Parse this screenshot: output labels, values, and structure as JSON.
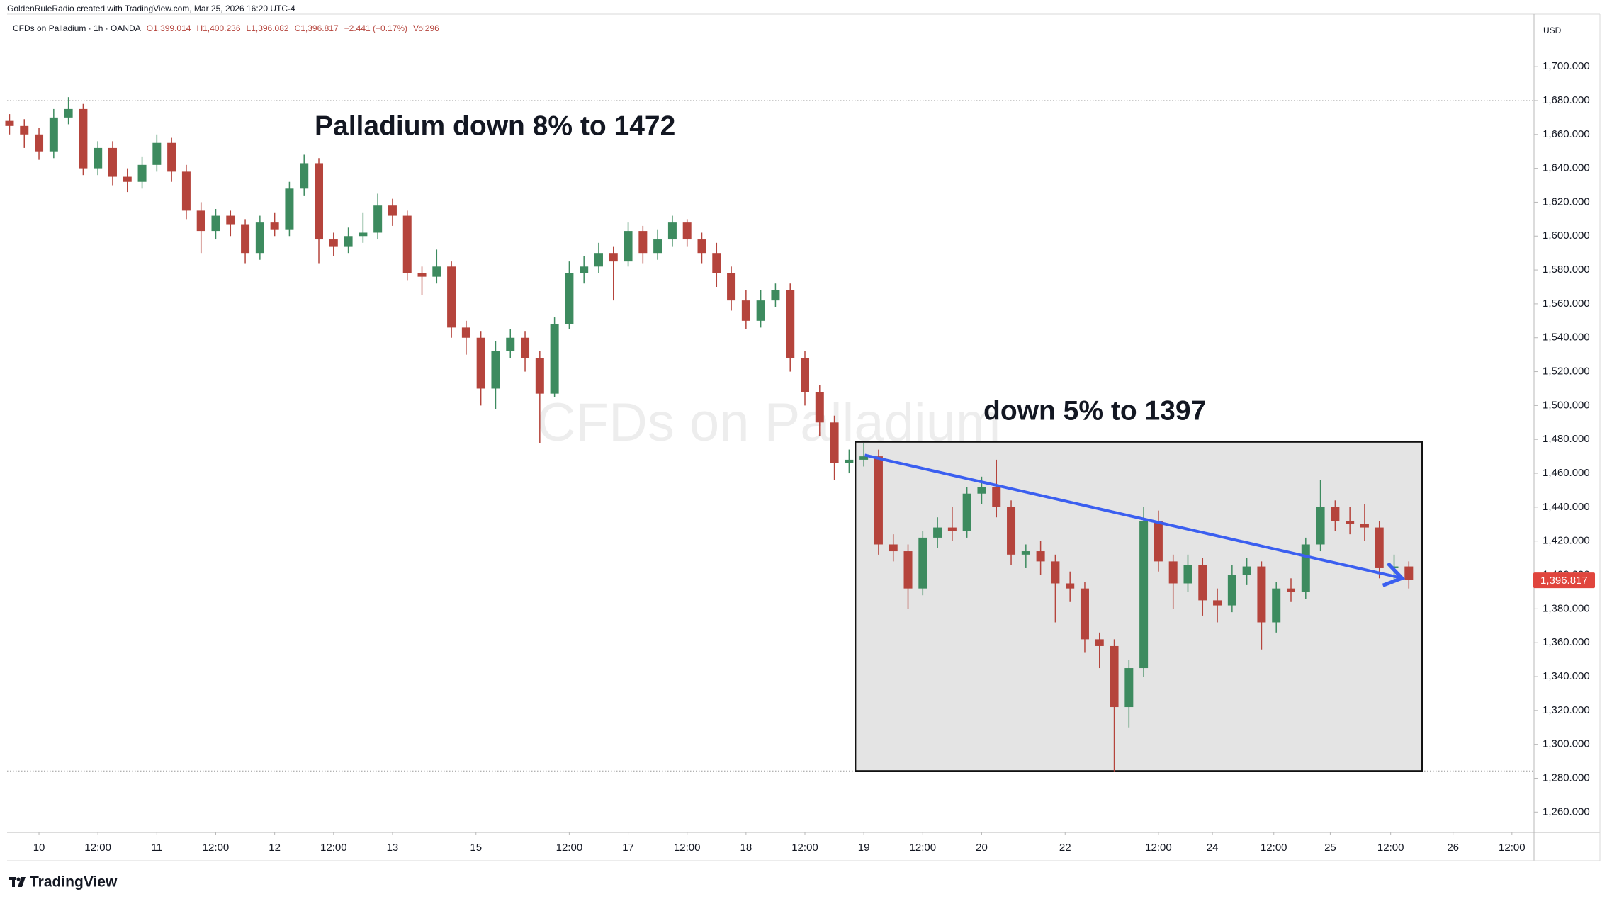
{
  "chart_data": {
    "type": "candlestick",
    "credit": "GoldenRuleRadio created with TradingView.com, Mar 25, 2026 16:20 UTC-4",
    "symbol": "CFDs on Palladium · 1h · OANDA",
    "ohlc": [
      "O1,399.014",
      "H1,400.236",
      "L1,396.082",
      "C1,396.817",
      "−2.441 (−0.17%)",
      "Vol296"
    ],
    "watermark": "CFDs on Palladium",
    "currency": "USD",
    "logo": "TradingView",
    "annotations": [
      "Palladium down 8% to 1472",
      "down 5% to 1397"
    ],
    "up_color": "#3d8b5f",
    "down_color": "#b5443c",
    "x": [
      -6,
      -3,
      0,
      3,
      6,
      9,
      12,
      15,
      18,
      21,
      24,
      27,
      30,
      33,
      36,
      39,
      42,
      45,
      48,
      51,
      54,
      57,
      60,
      63,
      66,
      69,
      72,
      75,
      78,
      81,
      84,
      87,
      90,
      93,
      96,
      99,
      102,
      105,
      108,
      111,
      114,
      117,
      120,
      123,
      126,
      129,
      132,
      135,
      138,
      141,
      144,
      147,
      150,
      153,
      156,
      159,
      162,
      165,
      168,
      171,
      174,
      177,
      180,
      183,
      186,
      189,
      192,
      195,
      198,
      201,
      204,
      207,
      210,
      213,
      216,
      219,
      222,
      225,
      228,
      231,
      234,
      237,
      240,
      243,
      246,
      249,
      252,
      255,
      258,
      261,
      264,
      267,
      270,
      273,
      276,
      279
    ],
    "open": [
      1668,
      1665,
      1660,
      1650,
      1670,
      1675,
      1640,
      1652,
      1635,
      1632,
      1642,
      1655,
      1638,
      1615,
      1603,
      1612,
      1607,
      1590,
      1608,
      1604,
      1628,
      1643,
      1598,
      1594,
      1600,
      1602,
      1618,
      1612,
      1578,
      1576,
      1582,
      1546,
      1540,
      1510,
      1532,
      1540,
      1528,
      1507,
      1548,
      1578,
      1582,
      1590,
      1585,
      1603,
      1590,
      1598,
      1608,
      1598,
      1590,
      1578,
      1562,
      1550,
      1562,
      1568,
      1528,
      1508,
      1490,
      1466,
      1468,
      1470,
      1418,
      1414,
      1392,
      1422,
      1428,
      1426,
      1448,
      1452,
      1440,
      1412,
      1414,
      1408,
      1395,
      1392,
      1362,
      1358,
      1322,
      1345,
      1432,
      1408,
      1395,
      1406,
      1385,
      1382,
      1400,
      1405,
      1372,
      1392,
      1390,
      1418,
      1440,
      1432,
      1430,
      1428,
      1404,
      1405
    ],
    "high": [
      1672,
      1669,
      1664,
      1675,
      1682,
      1678,
      1656,
      1656,
      1640,
      1647,
      1660,
      1658,
      1642,
      1620,
      1616,
      1615,
      1610,
      1612,
      1614,
      1632,
      1648,
      1646,
      1602,
      1605,
      1614,
      1625,
      1622,
      1615,
      1582,
      1592,
      1585,
      1550,
      1544,
      1538,
      1545,
      1544,
      1532,
      1552,
      1585,
      1588,
      1596,
      1594,
      1608,
      1606,
      1604,
      1612,
      1610,
      1602,
      1596,
      1582,
      1568,
      1568,
      1572,
      1572,
      1532,
      1512,
      1494,
      1474,
      1478,
      1474,
      1424,
      1418,
      1426,
      1434,
      1440,
      1452,
      1458,
      1468,
      1444,
      1418,
      1420,
      1412,
      1402,
      1396,
      1366,
      1362,
      1350,
      1440,
      1438,
      1412,
      1412,
      1410,
      1392,
      1406,
      1410,
      1408,
      1396,
      1398,
      1422,
      1456,
      1444,
      1440,
      1442,
      1432,
      1412,
      1408
    ],
    "low": [
      1660,
      1652,
      1645,
      1646,
      1666,
      1636,
      1636,
      1630,
      1626,
      1628,
      1638,
      1632,
      1610,
      1590,
      1598,
      1600,
      1584,
      1586,
      1600,
      1600,
      1624,
      1584,
      1588,
      1590,
      1596,
      1598,
      1606,
      1574,
      1565,
      1572,
      1540,
      1530,
      1500,
      1498,
      1528,
      1520,
      1478,
      1505,
      1545,
      1572,
      1578,
      1562,
      1582,
      1584,
      1586,
      1594,
      1594,
      1584,
      1570,
      1556,
      1545,
      1546,
      1558,
      1520,
      1500,
      1482,
      1456,
      1460,
      1464,
      1412,
      1408,
      1380,
      1388,
      1416,
      1420,
      1422,
      1442,
      1434,
      1406,
      1404,
      1400,
      1372,
      1384,
      1354,
      1345,
      1284,
      1310,
      1340,
      1402,
      1380,
      1390,
      1376,
      1372,
      1378,
      1394,
      1356,
      1366,
      1384,
      1386,
      1414,
      1426,
      1424,
      1420,
      1398,
      1396,
      1392
    ],
    "close": [
      1665,
      1660,
      1650,
      1670,
      1675,
      1640,
      1652,
      1635,
      1632,
      1642,
      1655,
      1638,
      1615,
      1603,
      1612,
      1607,
      1590,
      1608,
      1604,
      1628,
      1643,
      1598,
      1594,
      1600,
      1602,
      1618,
      1612,
      1578,
      1576,
      1582,
      1546,
      1540,
      1510,
      1532,
      1540,
      1528,
      1507,
      1548,
      1578,
      1582,
      1590,
      1585,
      1603,
      1590,
      1598,
      1608,
      1598,
      1590,
      1578,
      1562,
      1550,
      1562,
      1568,
      1528,
      1508,
      1490,
      1466,
      1468,
      1470,
      1418,
      1414,
      1392,
      1422,
      1428,
      1426,
      1448,
      1452,
      1440,
      1412,
      1414,
      1408,
      1395,
      1392,
      1362,
      1358,
      1322,
      1345,
      1432,
      1408,
      1395,
      1406,
      1385,
      1382,
      1400,
      1405,
      1372,
      1392,
      1390,
      1418,
      1440,
      1432,
      1430,
      1428,
      1404,
      1405,
      1397
    ],
    "xlim": [
      -6.5,
      304.5
    ],
    "ylim": [
      1248,
      1731
    ],
    "xticks": [
      {
        "value": 0,
        "label": "10"
      },
      {
        "value": 12,
        "label": "12:00"
      },
      {
        "value": 24,
        "label": "11"
      },
      {
        "value": 36,
        "label": "12:00"
      },
      {
        "value": 48,
        "label": "12"
      },
      {
        "value": 60,
        "label": "12:00"
      },
      {
        "value": 72,
        "label": "13"
      },
      {
        "value": 89,
        "label": "15"
      },
      {
        "value": 108,
        "label": "12:00"
      },
      {
        "value": 120,
        "label": "17"
      },
      {
        "value": 132,
        "label": "12:00"
      },
      {
        "value": 144,
        "label": "18"
      },
      {
        "value": 156,
        "label": "12:00"
      },
      {
        "value": 168,
        "label": "19"
      },
      {
        "value": 180,
        "label": "12:00"
      },
      {
        "value": 192,
        "label": "20"
      },
      {
        "value": 209,
        "label": "22"
      },
      {
        "value": 228,
        "label": "12:00"
      },
      {
        "value": 239,
        "label": "24"
      },
      {
        "value": 251.5,
        "label": "12:00"
      },
      {
        "value": 263,
        "label": "25"
      },
      {
        "value": 275.3,
        "label": "12:00"
      },
      {
        "value": 288,
        "label": "26"
      },
      {
        "value": 300,
        "label": "12:00"
      }
    ],
    "yticks": [
      {
        "value": 1260,
        "label": "1,260.000"
      },
      {
        "value": 1280,
        "label": "1,280.000"
      },
      {
        "value": 1300,
        "label": "1,300.000"
      },
      {
        "value": 1320,
        "label": "1,320.000"
      },
      {
        "value": 1340,
        "label": "1,340.000"
      },
      {
        "value": 1360,
        "label": "1,360.000"
      },
      {
        "value": 1380,
        "label": "1,380.000"
      },
      {
        "value": 1400,
        "label": "1,400.000"
      },
      {
        "value": 1420,
        "label": "1,420.000"
      },
      {
        "value": 1440,
        "label": "1,440.000"
      },
      {
        "value": 1460,
        "label": "1,460.000"
      },
      {
        "value": 1480,
        "label": "1,480.000"
      },
      {
        "value": 1500,
        "label": "1,500.000"
      },
      {
        "value": 1520,
        "label": "1,520.000"
      },
      {
        "value": 1540,
        "label": "1,540.000"
      },
      {
        "value": 1560,
        "label": "1,560.000"
      },
      {
        "value": 1580,
        "label": "1,580.000"
      },
      {
        "value": 1600,
        "label": "1,600.000"
      },
      {
        "value": 1620,
        "label": "1,620.000"
      },
      {
        "value": 1640,
        "label": "1,640.000"
      },
      {
        "value": 1660,
        "label": "1,660.000"
      },
      {
        "value": 1680,
        "label": "1,680.000"
      },
      {
        "value": 1700,
        "label": "1,700.000"
      }
    ],
    "grid": false,
    "last_price": {
      "value": 1396.817,
      "label": "1,396.817",
      "color": "#e0453d"
    },
    "hlines": [
      1680,
      1284.3
    ],
    "box": {
      "x": [
        166.3,
        281.7
      ],
      "y": [
        1284.3,
        1478.5
      ],
      "color": "#e4e4e4"
    },
    "trendline": {
      "x": [
        168.2,
        277.6
      ],
      "y": [
        1470.7,
        1398.1
      ],
      "color": "#3b5ff0"
    }
  }
}
